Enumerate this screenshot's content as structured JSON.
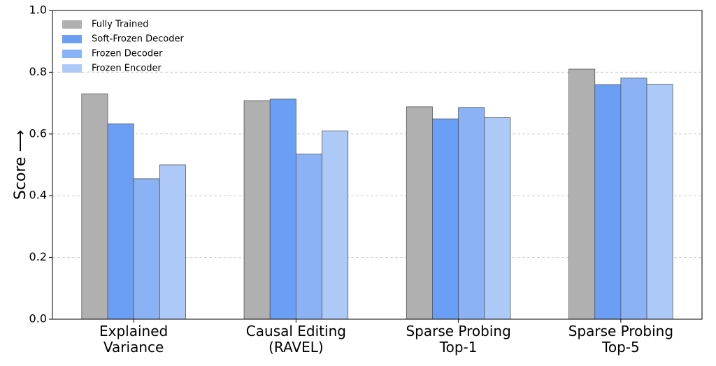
{
  "chart_data": {
    "type": "bar",
    "y_label": "Score ⟶",
    "categories": [
      "Explained\nVariance",
      "Causal Editing\n(RAVEL)",
      "Sparse Probing\nTop-1",
      "Sparse Probing\nTop-5"
    ],
    "series": [
      {
        "name": "Fully Trained",
        "color": "#b0b0b0",
        "values": [
          0.73,
          0.708,
          0.688,
          0.81
        ]
      },
      {
        "name": "Soft-Frozen Decoder",
        "color": "#6b9ff5",
        "values": [
          0.633,
          0.713,
          0.649,
          0.76
        ]
      },
      {
        "name": "Frozen Decoder",
        "color": "#8ab2f5",
        "values": [
          0.455,
          0.535,
          0.686,
          0.781
        ]
      },
      {
        "name": "Frozen Encoder",
        "color": "#adc9f8",
        "values": [
          0.5,
          0.61,
          0.653,
          0.761
        ]
      }
    ],
    "ylim": [
      0,
      1
    ],
    "yticks": [
      {
        "value": 0,
        "label": "0.0"
      },
      0.2,
      0.4,
      0.6,
      0.8,
      {
        "value": 1,
        "label": "1.0"
      }
    ],
    "grid": true,
    "legend": "upper-left"
  }
}
